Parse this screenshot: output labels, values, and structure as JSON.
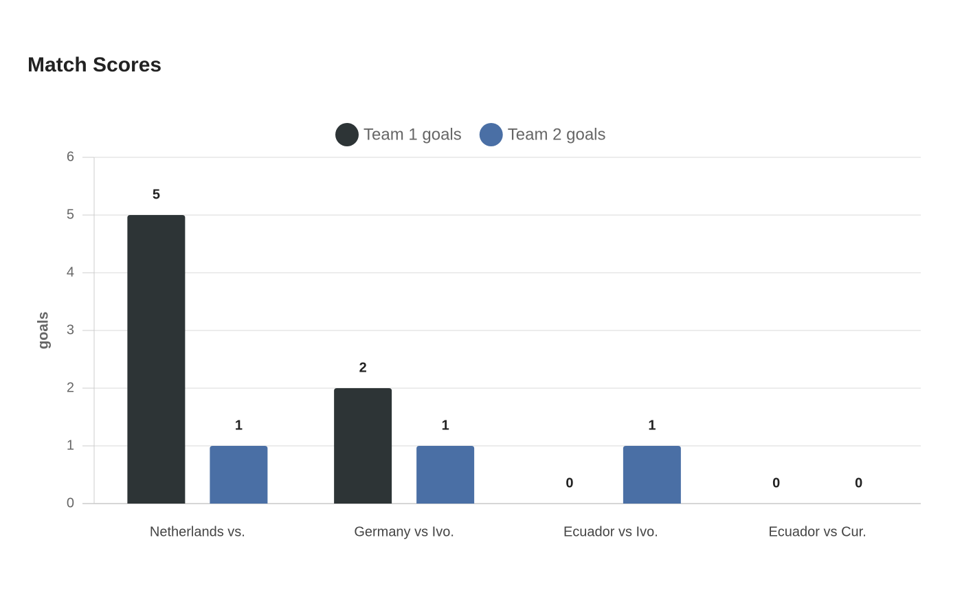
{
  "chart_data": {
    "type": "bar",
    "title": "Match Scores",
    "y_label": "goals",
    "categories": [
      "Netherlands vs.",
      "Germany vs Ivo.",
      "Ecuador vs Ivo.",
      "Ecuador vs Cur."
    ],
    "series": [
      {
        "name": "Team 1 goals",
        "color": "#2d3436",
        "values": [
          5,
          2,
          0,
          0
        ]
      },
      {
        "name": "Team 2 goals",
        "color": "#4a6fa5",
        "values": [
          1,
          1,
          1,
          0
        ]
      }
    ],
    "ylim": [
      0,
      6
    ],
    "yticks": [
      0,
      1,
      2,
      3,
      4,
      5,
      6
    ],
    "grid": true,
    "legend": "top"
  }
}
